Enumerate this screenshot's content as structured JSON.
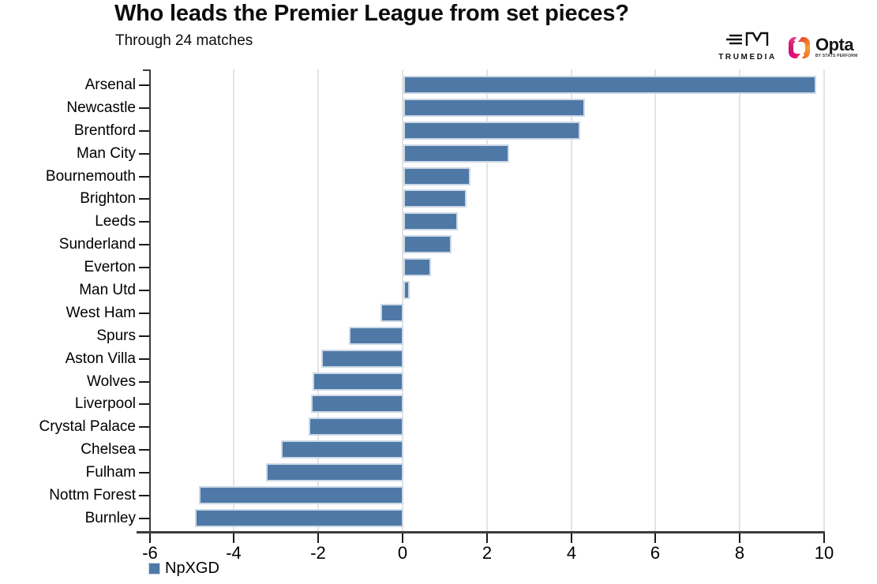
{
  "header": {
    "title": "Who leads the Premier League from set pieces?",
    "subtitle": "Through 24 matches"
  },
  "logos": {
    "trumedia_label": "TRUMEDIA",
    "opta_label": "Opta",
    "opta_sublabel": "BY STATS PERFORM"
  },
  "legend": {
    "label": "NpXGD"
  },
  "colors": {
    "bar_fill": "#4e79a7",
    "bar_border": "#ccd8e6",
    "axis": "#3b3b3b",
    "gridline": "#e4e4e4",
    "text": "#000000"
  },
  "chart_data": {
    "type": "bar",
    "orientation": "horizontal",
    "title": "Who leads the Premier League from set pieces?",
    "subtitle": "Through 24 matches",
    "series_name": "NpXGD",
    "categories": [
      "Arsenal",
      "Newcastle",
      "Brentford",
      "Man City",
      "Bournemouth",
      "Brighton",
      "Leeds",
      "Sunderland",
      "Everton",
      "Man Utd",
      "West Ham",
      "Spurs",
      "Aston Villa",
      "Wolves",
      "Liverpool",
      "Crystal Palace",
      "Chelsea",
      "Fulham",
      "Nottm Forest",
      "Burnley"
    ],
    "values": [
      9.8,
      4.3,
      4.2,
      2.5,
      1.6,
      1.5,
      1.3,
      1.15,
      0.65,
      0.15,
      -0.55,
      -1.3,
      -1.95,
      -2.15,
      -2.2,
      -2.25,
      -2.9,
      -3.25,
      -4.85,
      -4.95
    ],
    "xticks": [
      -6,
      -4,
      -2,
      0,
      2,
      4,
      6,
      8,
      10
    ],
    "xlim": [
      -6,
      10.3
    ],
    "xlabel": "",
    "ylabel": "",
    "grid": true,
    "legend_position": "bottom-left"
  }
}
